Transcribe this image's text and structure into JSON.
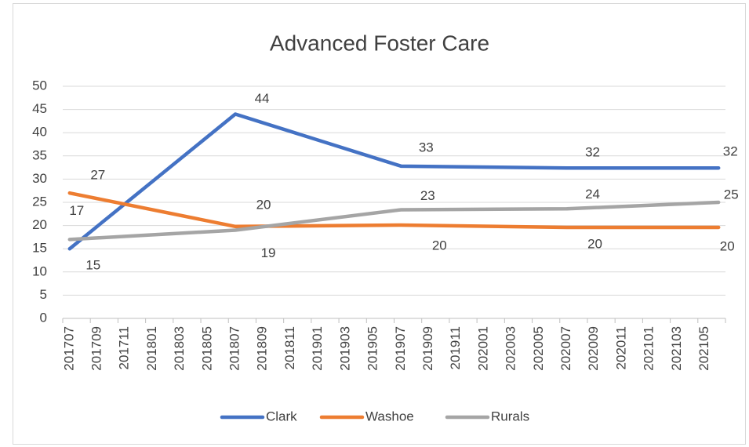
{
  "chart_data": {
    "type": "line",
    "title": "Advanced Foster Care",
    "categories": [
      "201707",
      null,
      "201709",
      null,
      "201711",
      null,
      "201801",
      null,
      "201803",
      null,
      "201805",
      null,
      "201807",
      null,
      "201809",
      null,
      "201811",
      null,
      "201901",
      null,
      "201903",
      null,
      "201905",
      null,
      "201907",
      null,
      "201909",
      null,
      "201911",
      null,
      "202001",
      null,
      "202003",
      null,
      "202005",
      null,
      "202007",
      null,
      "202009",
      null,
      "202011",
      null,
      "202101",
      null,
      "202103",
      null,
      "202105",
      null
    ],
    "series": [
      {
        "name": "Clark",
        "color": "#4472c4",
        "values": [
          15,
          null,
          null,
          null,
          null,
          null,
          null,
          null,
          null,
          null,
          null,
          null,
          44,
          null,
          null,
          null,
          null,
          null,
          null,
          null,
          null,
          null,
          null,
          null,
          32.8,
          null,
          null,
          null,
          null,
          null,
          null,
          null,
          null,
          null,
          null,
          null,
          32.4,
          null,
          null,
          null,
          null,
          null,
          null,
          null,
          null,
          null,
          null,
          32.4
        ],
        "value_labels": [
          "15",
          null,
          null,
          null,
          null,
          null,
          null,
          null,
          null,
          null,
          null,
          null,
          "44",
          null,
          null,
          null,
          null,
          null,
          null,
          null,
          null,
          null,
          null,
          null,
          "33",
          null,
          null,
          null,
          null,
          null,
          null,
          null,
          null,
          null,
          null,
          null,
          "32",
          null,
          null,
          null,
          null,
          null,
          null,
          null,
          null,
          null,
          null,
          "32"
        ]
      },
      {
        "name": "Washoe",
        "color": "#ed7d31",
        "values": [
          27,
          null,
          null,
          null,
          null,
          null,
          null,
          null,
          null,
          null,
          null,
          null,
          19.8,
          null,
          null,
          null,
          null,
          null,
          null,
          null,
          null,
          null,
          null,
          null,
          20.1,
          null,
          null,
          null,
          null,
          null,
          null,
          null,
          null,
          null,
          null,
          null,
          19.6,
          null,
          null,
          null,
          null,
          null,
          null,
          null,
          null,
          null,
          null,
          19.6
        ],
        "value_labels": [
          "27",
          null,
          null,
          null,
          null,
          null,
          null,
          null,
          null,
          null,
          null,
          null,
          "20",
          null,
          null,
          null,
          null,
          null,
          null,
          null,
          null,
          null,
          null,
          null,
          "20",
          null,
          null,
          null,
          null,
          null,
          null,
          null,
          null,
          null,
          null,
          null,
          "20",
          null,
          null,
          null,
          null,
          null,
          null,
          null,
          null,
          null,
          null,
          "20"
        ]
      },
      {
        "name": "Rurals",
        "color": "#a5a5a5",
        "values": [
          17,
          null,
          null,
          null,
          null,
          null,
          null,
          null,
          null,
          null,
          null,
          null,
          19,
          null,
          null,
          null,
          null,
          null,
          null,
          null,
          null,
          null,
          null,
          null,
          23.4,
          null,
          null,
          null,
          null,
          null,
          null,
          null,
          null,
          null,
          null,
          null,
          23.6,
          null,
          null,
          null,
          null,
          null,
          null,
          null,
          null,
          null,
          null,
          25
        ],
        "value_labels": [
          "17",
          null,
          null,
          null,
          null,
          null,
          null,
          null,
          null,
          null,
          null,
          null,
          "19",
          null,
          null,
          null,
          null,
          null,
          null,
          null,
          null,
          null,
          null,
          null,
          "23",
          null,
          null,
          null,
          null,
          null,
          null,
          null,
          null,
          null,
          null,
          null,
          "24",
          null,
          null,
          null,
          null,
          null,
          null,
          null,
          null,
          null,
          null,
          "25"
        ]
      }
    ],
    "connect_gaps": true,
    "ylim": [
      0,
      50
    ],
    "yticks": [
      0,
      5,
      10,
      15,
      20,
      25,
      30,
      35,
      40,
      45,
      50
    ],
    "grid": true,
    "legend": "bottom"
  }
}
